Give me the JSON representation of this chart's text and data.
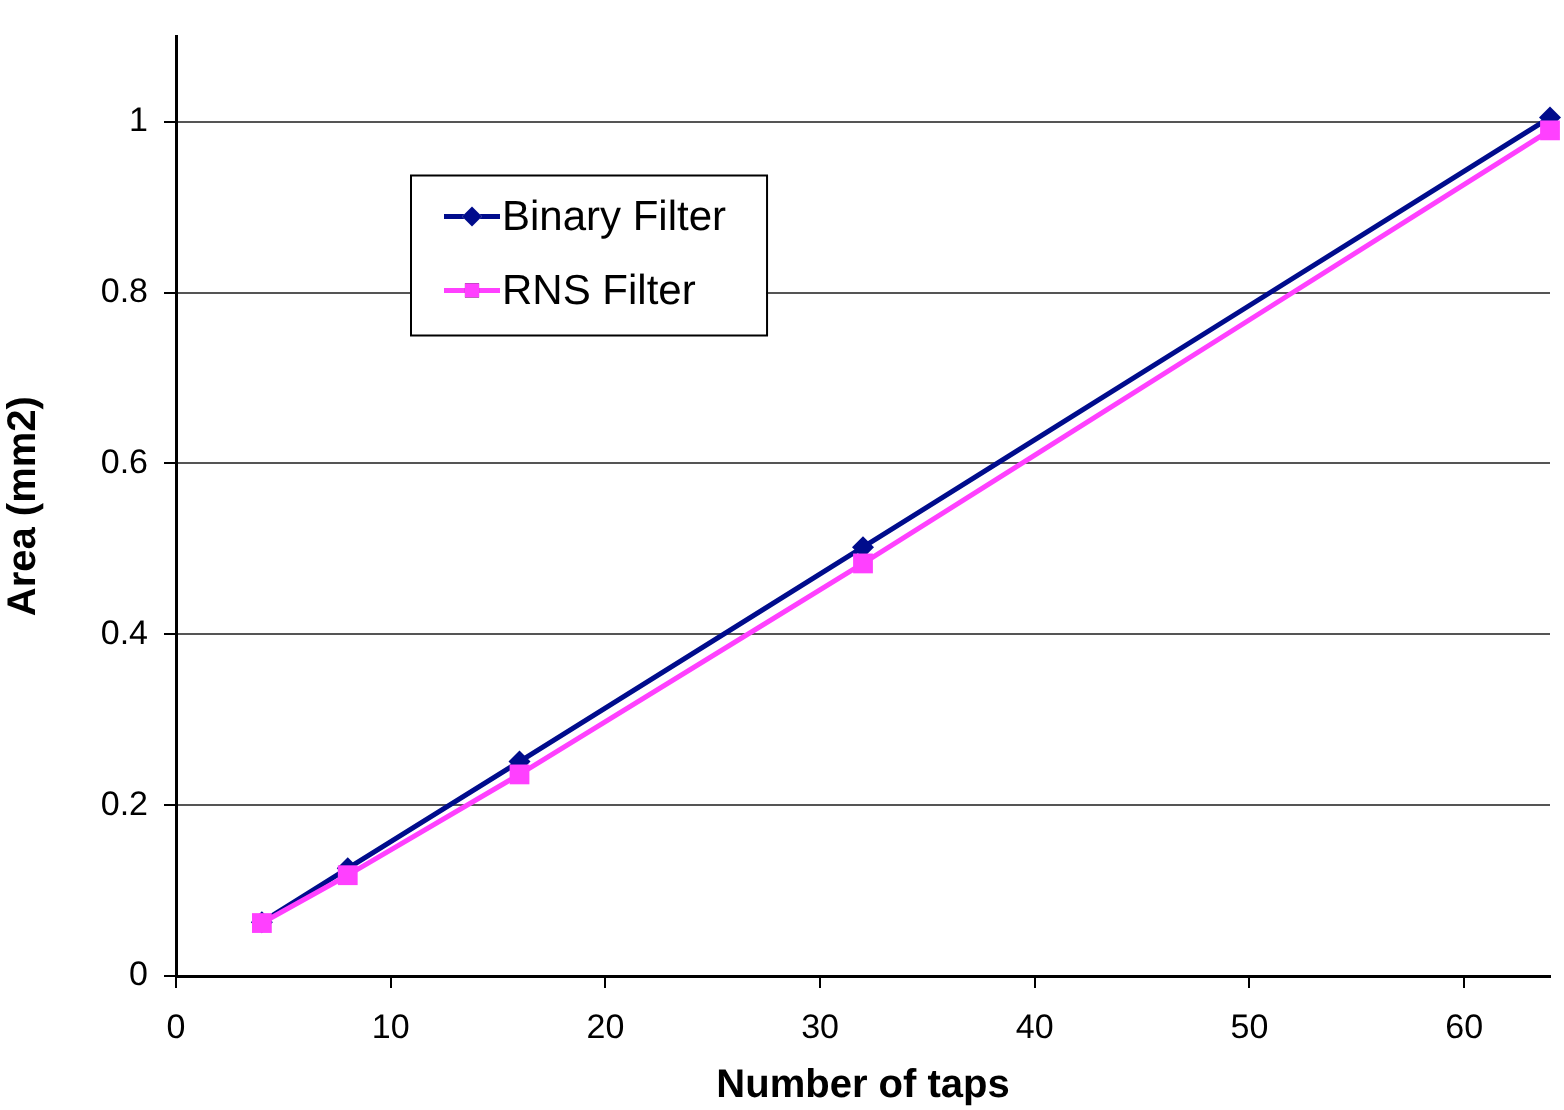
{
  "chart_data": {
    "type": "line",
    "xlabel": "Number of taps",
    "ylabel": "Area (mm2)",
    "x": [
      4,
      8,
      16,
      32,
      64
    ],
    "series": [
      {
        "name": "Binary Filter",
        "color": "#000c8c",
        "values": [
          0.063,
          0.126,
          0.251,
          0.502,
          1.005
        ],
        "marker": "diamond"
      },
      {
        "name": "RNS Filter",
        "color": "#ff40ff",
        "values": [
          0.062,
          0.118,
          0.236,
          0.483,
          0.99
        ],
        "marker": "square"
      }
    ],
    "xlim": [
      0,
      64
    ],
    "xticks": [
      0,
      10,
      20,
      30,
      40,
      50,
      60
    ],
    "ylim": [
      0,
      1.1
    ],
    "yticks": [
      0,
      0.2,
      0.4,
      0.6,
      0.8,
      1
    ],
    "grid": "y",
    "legend": "top left",
    "line_style": "solid"
  }
}
